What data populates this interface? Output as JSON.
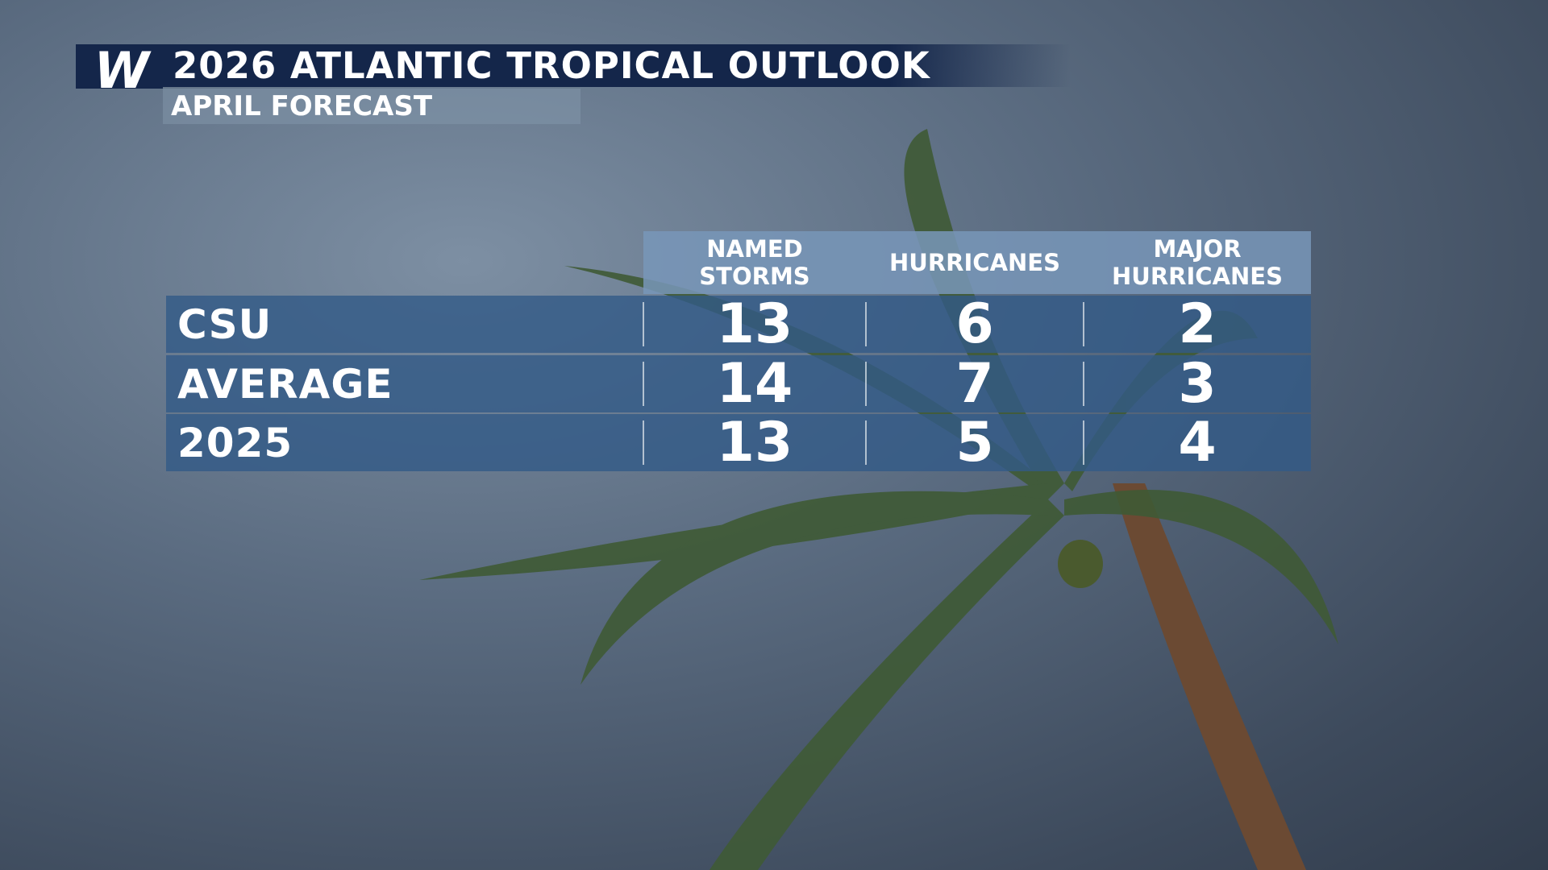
{
  "header": {
    "logo": "W",
    "title": "2026 ATLANTIC TROPICAL OUTLOOK",
    "subtitle": "APRIL FORECAST"
  },
  "table": {
    "columns": [
      "NAMED STORMS",
      "HURRICANES",
      "MAJOR HURRICANES"
    ],
    "rows": [
      [
        "CSU",
        13,
        6,
        2
      ],
      [
        "AVERAGE",
        14,
        7,
        3
      ],
      [
        "2025",
        13,
        5,
        4
      ]
    ]
  }
}
